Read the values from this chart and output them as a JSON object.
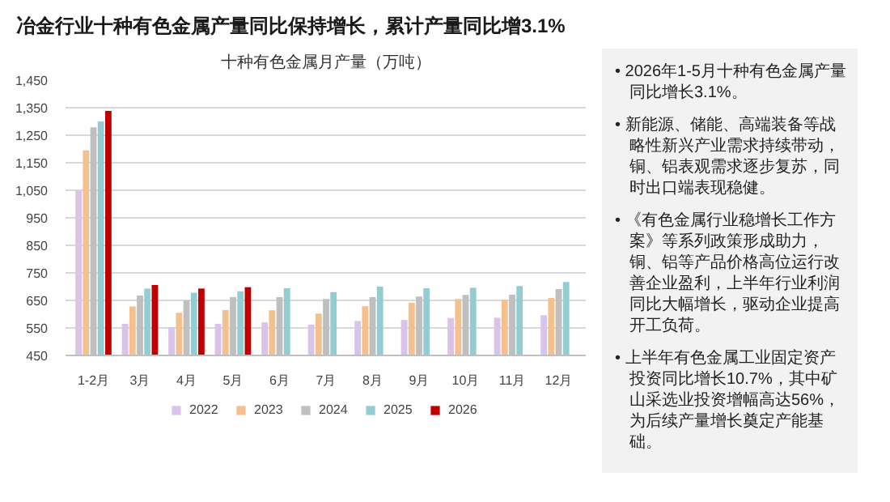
{
  "chart_data": {
    "type": "bar",
    "title": "冶金行业十种有色金属产量同比保持增长，累计产量同比增3.1%",
    "subtitle": "十种有色金属月产量（万吨）",
    "categories": [
      "1-2月",
      "3月",
      "4月",
      "5月",
      "6月",
      "7月",
      "8月",
      "9月",
      "10月",
      "11月",
      "12月"
    ],
    "series": [
      {
        "name": "2022",
        "color": "#d9c3e9",
        "values": [
          1050,
          565,
          552,
          565,
          570,
          562,
          575,
          579,
          586,
          587,
          596
        ]
      },
      {
        "name": "2023",
        "color": "#f4c08e",
        "values": [
          1195,
          628,
          605,
          615,
          614,
          602,
          629,
          641,
          655,
          652,
          659
        ]
      },
      {
        "name": "2024",
        "color": "#bfbfbf",
        "values": [
          1279,
          668,
          650,
          662,
          662,
          655,
          662,
          664,
          670,
          671,
          691
        ]
      },
      {
        "name": "2025",
        "color": "#93cdd1",
        "values": [
          1300,
          693,
          678,
          683,
          694,
          680,
          700,
          694,
          696,
          702,
          717
        ]
      },
      {
        "name": "2026",
        "color": "#c00000",
        "values": [
          1338,
          706,
          693,
          698,
          null,
          null,
          null,
          null,
          null,
          null,
          null
        ]
      }
    ],
    "ylim": [
      450,
      1450
    ],
    "yticks": [
      450,
      550,
      650,
      750,
      850,
      950,
      {
        "value": 1050,
        "label": "1,050"
      },
      {
        "value": 1150,
        "label": "1,150"
      },
      {
        "value": 1250,
        "label": "1,250"
      },
      {
        "value": 1350,
        "label": "1,350"
      },
      {
        "value": 1450,
        "label": "1,450"
      }
    ],
    "grid": "y",
    "legend": "bottom",
    "annotations": [
      "• 2026年1-5月十种有色金属产量同比增长3.1%。",
      "• 新能源、储能、高端装备等战略性新兴产业需求持续带动，铜、铝表观需求逐步复苏，同时出口端表现稳健。",
      "• 《有色金属行业稳增长工作方案》等系列政策形成助力，铜、铝等产品价格高位运行改善企业盈利，上半年行业利润同比大幅增长，驱动企业提高开工负荷。",
      "• 上半年有色金属工业固定资产投资同比增长10.7%，其中矿山采选业投资增幅高达56%，为后续产量增长奠定产能基础。"
    ]
  }
}
